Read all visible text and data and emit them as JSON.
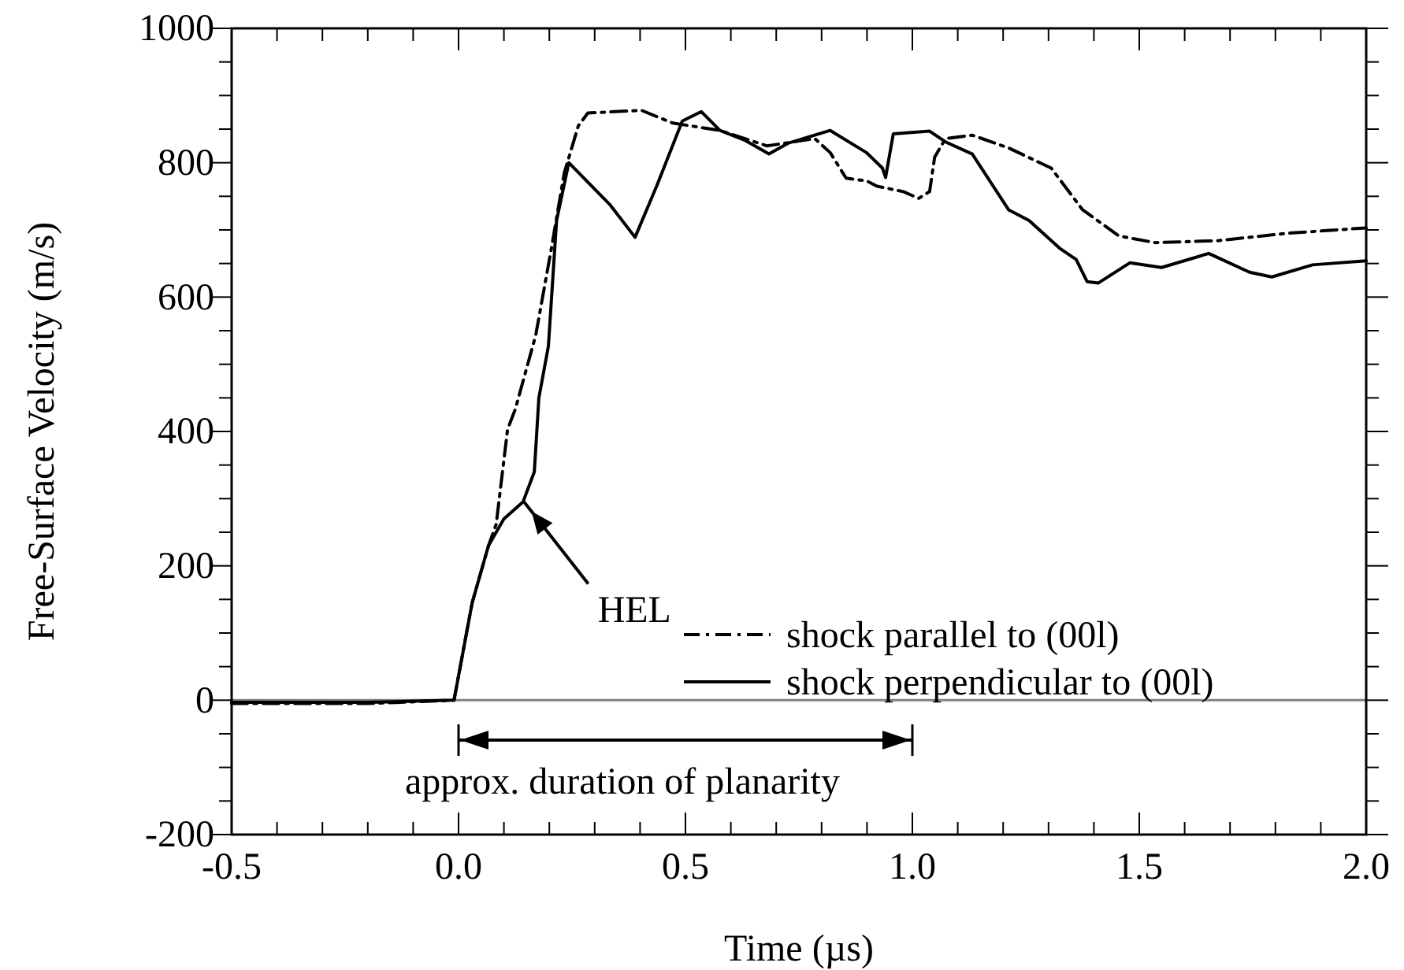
{
  "chart_data": {
    "type": "line",
    "xlabel": "Time (µs)",
    "ylabel": "Free-Surface Velocity (m/s)",
    "xlim": [
      -0.5,
      2.0
    ],
    "ylim": [
      -200,
      1000
    ],
    "xticks": [
      {
        "value": -0.5,
        "label": "-0.5"
      },
      {
        "value": -0.4,
        "label": null
      },
      {
        "value": -0.3,
        "label": null
      },
      {
        "value": -0.2,
        "label": null
      },
      {
        "value": -0.1,
        "label": null
      },
      {
        "value": 0,
        "label": "0.0"
      },
      {
        "value": 0.1,
        "label": null
      },
      {
        "value": 0.2,
        "label": null
      },
      {
        "value": 0.3,
        "label": null
      },
      {
        "value": 0.4,
        "label": null
      },
      {
        "value": 0.5,
        "label": "0.5"
      },
      {
        "value": 0.6,
        "label": null
      },
      {
        "value": 0.7,
        "label": null
      },
      {
        "value": 0.8,
        "label": null
      },
      {
        "value": 0.9,
        "label": null
      },
      {
        "value": 1.0,
        "label": "1.0"
      },
      {
        "value": 1.1,
        "label": null
      },
      {
        "value": 1.2,
        "label": null
      },
      {
        "value": 1.3,
        "label": null
      },
      {
        "value": 1.4,
        "label": null
      },
      {
        "value": 1.5,
        "label": "1.5"
      },
      {
        "value": 1.6,
        "label": null
      },
      {
        "value": 1.7,
        "label": null
      },
      {
        "value": 1.8,
        "label": null
      },
      {
        "value": 1.9,
        "label": null
      },
      {
        "value": 2.0,
        "label": "2.0"
      }
    ],
    "yticks": [
      -200,
      {
        "value": -150,
        "label": null
      },
      {
        "value": -100,
        "label": null
      },
      {
        "value": -50,
        "label": null
      },
      0,
      {
        "value": 50,
        "label": null
      },
      {
        "value": 100,
        "label": null
      },
      {
        "value": 150,
        "label": null
      },
      200,
      {
        "value": 250,
        "label": null
      },
      {
        "value": 300,
        "label": null
      },
      {
        "value": 350,
        "label": null
      },
      400,
      {
        "value": 450,
        "label": null
      },
      {
        "value": 500,
        "label": null
      },
      {
        "value": 550,
        "label": null
      },
      600,
      {
        "value": 650,
        "label": null
      },
      {
        "value": 700,
        "label": null
      },
      {
        "value": 750,
        "label": null
      },
      800,
      {
        "value": 850,
        "label": null
      },
      {
        "value": 900,
        "label": null
      },
      {
        "value": 950,
        "label": null
      },
      1000
    ],
    "legend": "bottom right",
    "grid": false,
    "marker": "none",
    "ref_lines": [
      {
        "axis": "y",
        "value": 0,
        "color": "#808080"
      }
    ],
    "annotations": [
      {
        "text": "HEL",
        "x": 0.14,
        "y": 295
      },
      "approx. duration of planarity"
    ],
    "series": [
      {
        "name": "shock parallel to (00l)",
        "color": "#000000",
        "line_style": "dashed",
        "x": [
          -0.5,
          -0.2,
          -0.01,
          0.03,
          0.066,
          0.083,
          0.108,
          0.125,
          0.17,
          0.205,
          0.233,
          0.264,
          0.285,
          0.403,
          0.472,
          0.576,
          0.68,
          0.785,
          0.819,
          0.854,
          0.899,
          0.922,
          0.98,
          1.014,
          1.038,
          1.049,
          1.073,
          1.132,
          1.212,
          1.306,
          1.375,
          1.455,
          1.535,
          1.674,
          1.826,
          2.0
        ],
        "values": [
          -5,
          -5,
          0,
          145,
          230,
          262,
          403,
          433,
          543,
          674,
          785,
          855,
          874,
          878,
          859,
          848,
          825,
          836,
          815,
          777,
          773,
          765,
          757,
          747,
          757,
          808,
          836,
          841,
          822,
          792,
          730,
          691,
          681,
          684,
          695,
          703
        ]
      },
      {
        "name": "shock perpendicular to (00l)",
        "color": "#000000",
        "line_style": "solid",
        "x": [
          -0.5,
          -0.2,
          -0.01,
          0.03,
          0.066,
          0.1,
          0.142,
          0.167,
          0.177,
          0.198,
          0.216,
          0.243,
          0.333,
          0.389,
          0.437,
          0.493,
          0.535,
          0.576,
          0.632,
          0.684,
          0.726,
          0.819,
          0.899,
          0.934,
          0.941,
          0.958,
          1.038,
          1.073,
          1.132,
          1.212,
          1.257,
          1.326,
          1.361,
          1.385,
          1.41,
          1.479,
          1.549,
          1.653,
          1.743,
          1.792,
          1.882,
          2.0
        ],
        "values": [
          -3,
          -3,
          0,
          145,
          230,
          270,
          295,
          340,
          450,
          527,
          714,
          800,
          738,
          689,
          766,
          862,
          876,
          848,
          833,
          813,
          829,
          848,
          815,
          792,
          778,
          843,
          847,
          831,
          813,
          730,
          714,
          672,
          656,
          623,
          621,
          651,
          644,
          665,
          637,
          630,
          648,
          654
        ]
      }
    ]
  }
}
